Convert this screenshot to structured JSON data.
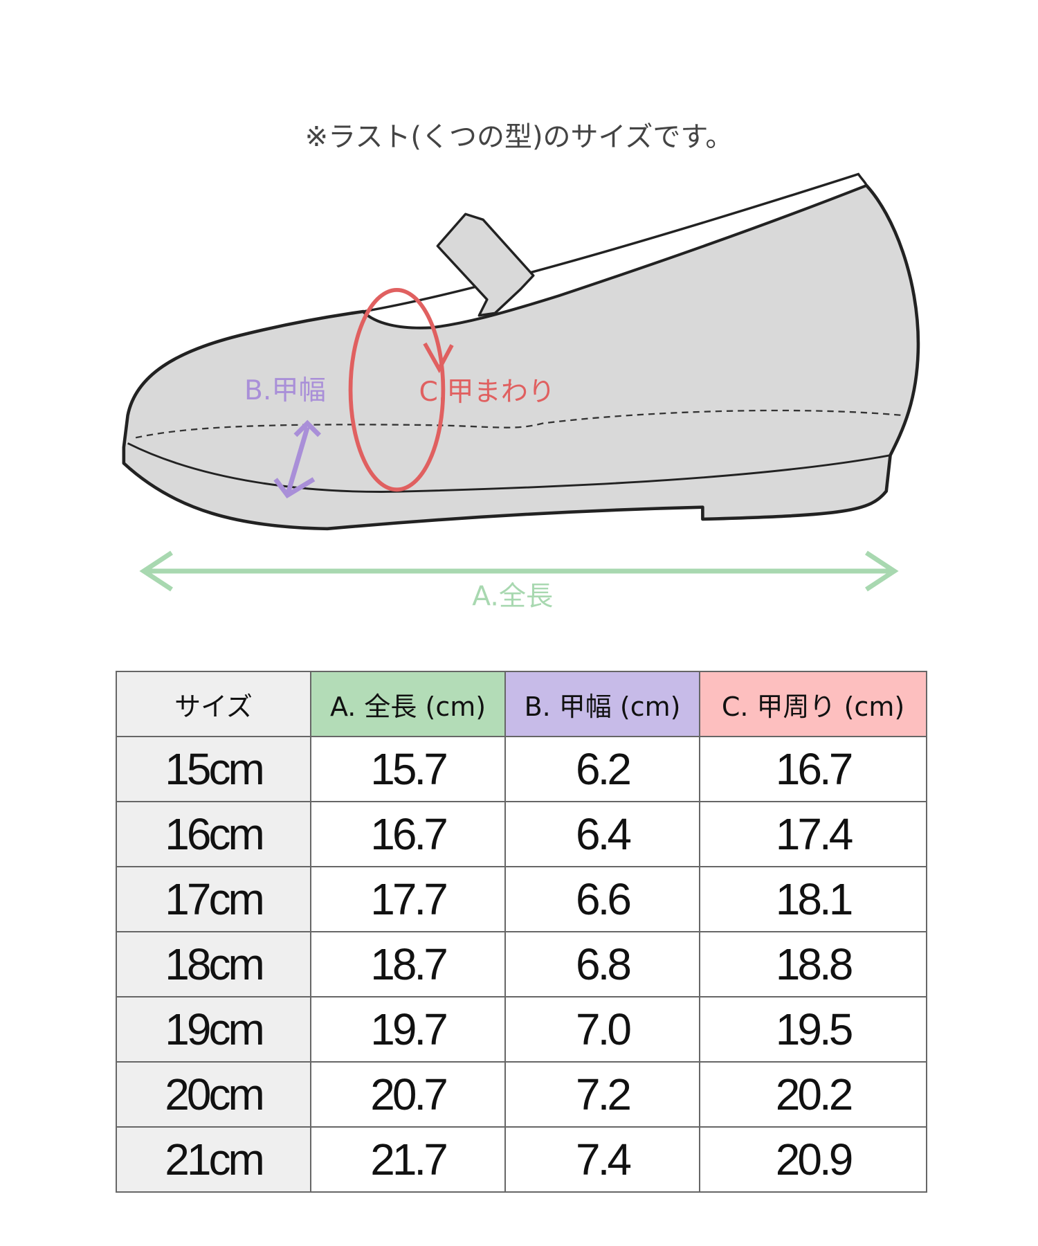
{
  "note": "※ラスト(くつの型)のサイズです。",
  "labels": {
    "length": "A.全長",
    "width": "B.甲幅",
    "girth": "C.甲まわり"
  },
  "colors": {
    "length": "#a8d8b0",
    "width": "#a98fd8",
    "girth": "#e06060",
    "shoe": "#d9d9d9",
    "header_size": "#efefef",
    "header_length": "#b3dcb7",
    "header_width": "#c7bbe8",
    "header_girth": "#fdbfbf"
  },
  "table": {
    "headers": [
      "サイズ",
      "A. 全長 (cm)",
      "B. 甲幅 (cm)",
      "C. 甲周り (cm)"
    ],
    "rows": [
      [
        "15cm",
        "15.7",
        "6.2",
        "16.7"
      ],
      [
        "16cm",
        "16.7",
        "6.4",
        "17.4"
      ],
      [
        "17cm",
        "17.7",
        "6.6",
        "18.1"
      ],
      [
        "18cm",
        "18.7",
        "6.8",
        "18.8"
      ],
      [
        "19cm",
        "19.7",
        "7.0",
        "19.5"
      ],
      [
        "20cm",
        "20.7",
        "7.2",
        "20.2"
      ],
      [
        "21cm",
        "21.7",
        "7.4",
        "20.9"
      ]
    ]
  }
}
